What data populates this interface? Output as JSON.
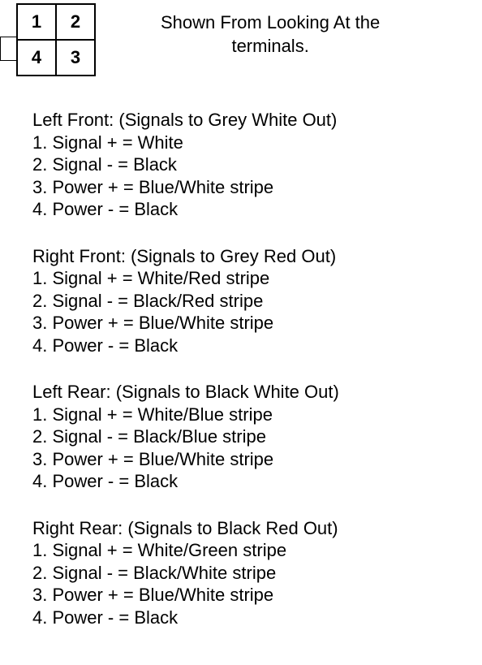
{
  "terminal_diagram": {
    "cells": [
      "1",
      "2",
      "4",
      "3"
    ],
    "cell_border_color": "#000000",
    "cell_font_size": 22,
    "cell_font_weight": "bold"
  },
  "caption": {
    "line1": "Shown From Looking At the",
    "line2": "terminals."
  },
  "sections": [
    {
      "title": "Left Front: (Signals to Grey White Out)",
      "lines": [
        "1. Signal + = White",
        "2. Signal - = Black",
        "3. Power + = Blue/White stripe",
        "4. Power - = Black"
      ]
    },
    {
      "title": "Right Front: (Signals to Grey Red Out)",
      "lines": [
        "1. Signal + = White/Red stripe",
        "2. Signal - = Black/Red stripe",
        "3. Power + = Blue/White stripe",
        "4. Power - = Black"
      ]
    },
    {
      "title": "Left Rear: (Signals to Black White Out)",
      "lines": [
        "1. Signal + = White/Blue stripe",
        "2. Signal - = Black/Blue stripe",
        "3. Power + = Blue/White stripe",
        "4. Power - = Black"
      ]
    },
    {
      "title": "Right Rear: (Signals to Black Red Out)",
      "lines": [
        "1. Signal + = White/Green stripe",
        "2. Signal - = Black/White stripe",
        "3. Power + = Blue/White stripe",
        "4. Power - = Black"
      ]
    }
  ],
  "colors": {
    "background": "#ffffff",
    "text": "#000000",
    "border": "#000000"
  },
  "typography": {
    "body_font_size": 22,
    "font_family": "Arial"
  }
}
